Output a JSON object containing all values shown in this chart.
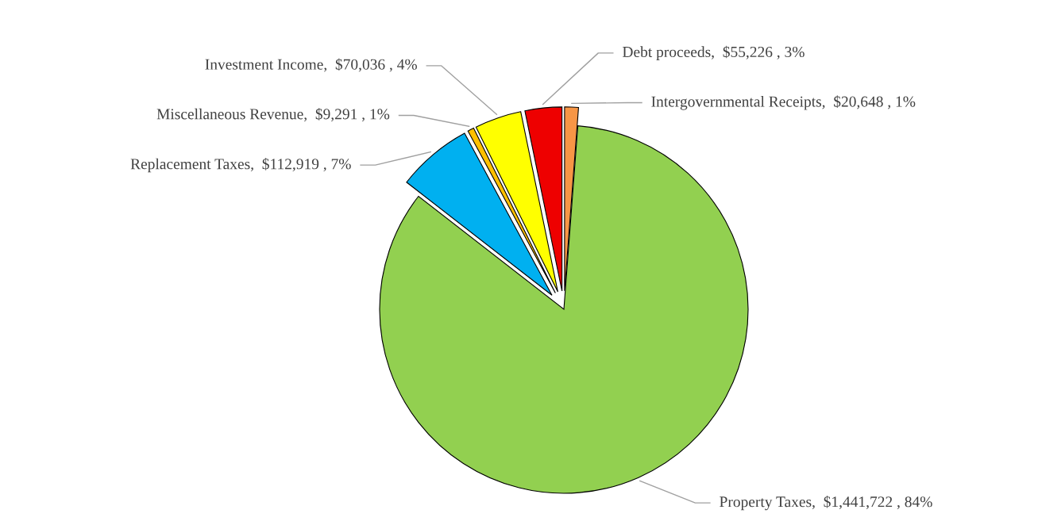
{
  "chart_data": {
    "type": "pie",
    "categories": [
      "Intergovernmental Receipts",
      "Property Taxes",
      "Replacement Taxes",
      "Miscellaneous Revenue",
      "Investment Income",
      "Debt proceeds"
    ],
    "values": [
      20648,
      1441722,
      112919,
      9291,
      70036,
      55226
    ],
    "value_labels": [
      "$20,648 , 1%",
      "$1,441,722 , 84%",
      "$112,919 , 7%",
      "$9,291 , 1%",
      "$70,036 , 4%",
      "$55,226 , 3%"
    ],
    "colors": [
      "#f79646",
      "#92d050",
      "#00b0f0",
      "#ffc000",
      "#ffff00",
      "#ee0000"
    ],
    "legend": false
  }
}
